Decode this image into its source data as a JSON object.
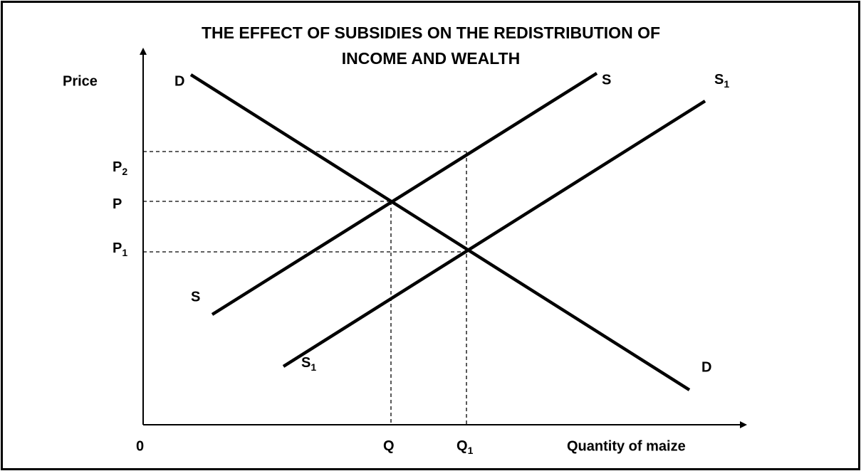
{
  "title": [
    "THE EFFECT OF SUBSIDIES ON THE REDISTRIBUTION OF",
    "INCOME AND WEALTH"
  ],
  "axes": {
    "y_label": "Price",
    "x_label": "Quantity of maize",
    "origin": "0"
  },
  "curves": {
    "demand": {
      "start_label": "D",
      "end_label": "D"
    },
    "supply": {
      "start_label": "S",
      "end_label": "S"
    },
    "supply_new": {
      "start_label": {
        "text": "S",
        "sub": "1"
      },
      "end_label": {
        "text": "S",
        "sub": "1"
      }
    }
  },
  "prices": [
    {
      "text": "P",
      "sub": "2"
    },
    {
      "text": "P"
    },
    {
      "text": "P",
      "sub": "1"
    }
  ],
  "quantities": [
    {
      "text": "Q"
    },
    {
      "text": "Q",
      "sub": "1"
    }
  ]
}
